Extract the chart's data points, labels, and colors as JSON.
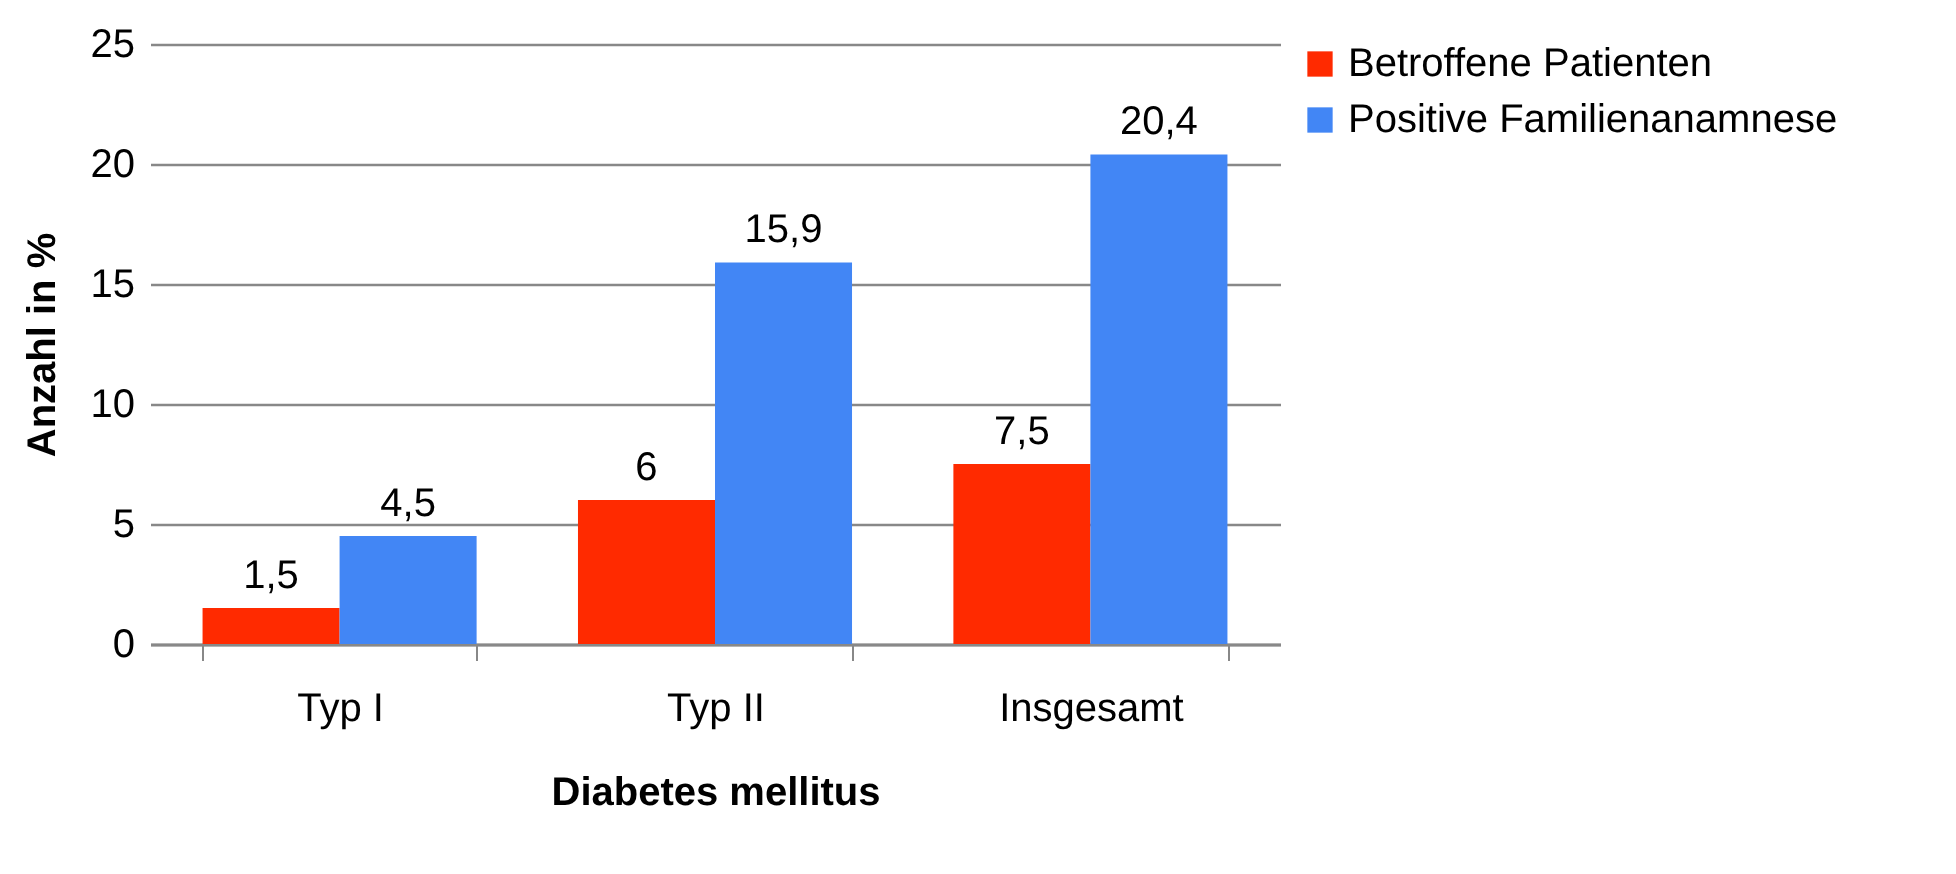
{
  "chart_data": {
    "type": "bar",
    "xlabel": "Diabetes mellitus",
    "ylabel": "Anzahl in %",
    "categories": [
      "Typ I",
      "Typ II",
      "Insgesamt"
    ],
    "series": [
      {
        "name": "Betroffene Patienten",
        "color": "#ff2a00",
        "values": [
          1.5,
          6,
          7.5
        ],
        "value_labels": [
          "1,5",
          "6",
          "7,5"
        ]
      },
      {
        "name": "Positive Familienanamnese",
        "color": "#4286f5",
        "values": [
          4.5,
          15.9,
          20.4
        ],
        "value_labels": [
          "4,5",
          "15,9",
          "20,4"
        ]
      }
    ],
    "ylim": [
      0,
      25
    ],
    "yticks": [
      0,
      5,
      10,
      15,
      20,
      25
    ],
    "grid": "y",
    "legend": "top right"
  }
}
